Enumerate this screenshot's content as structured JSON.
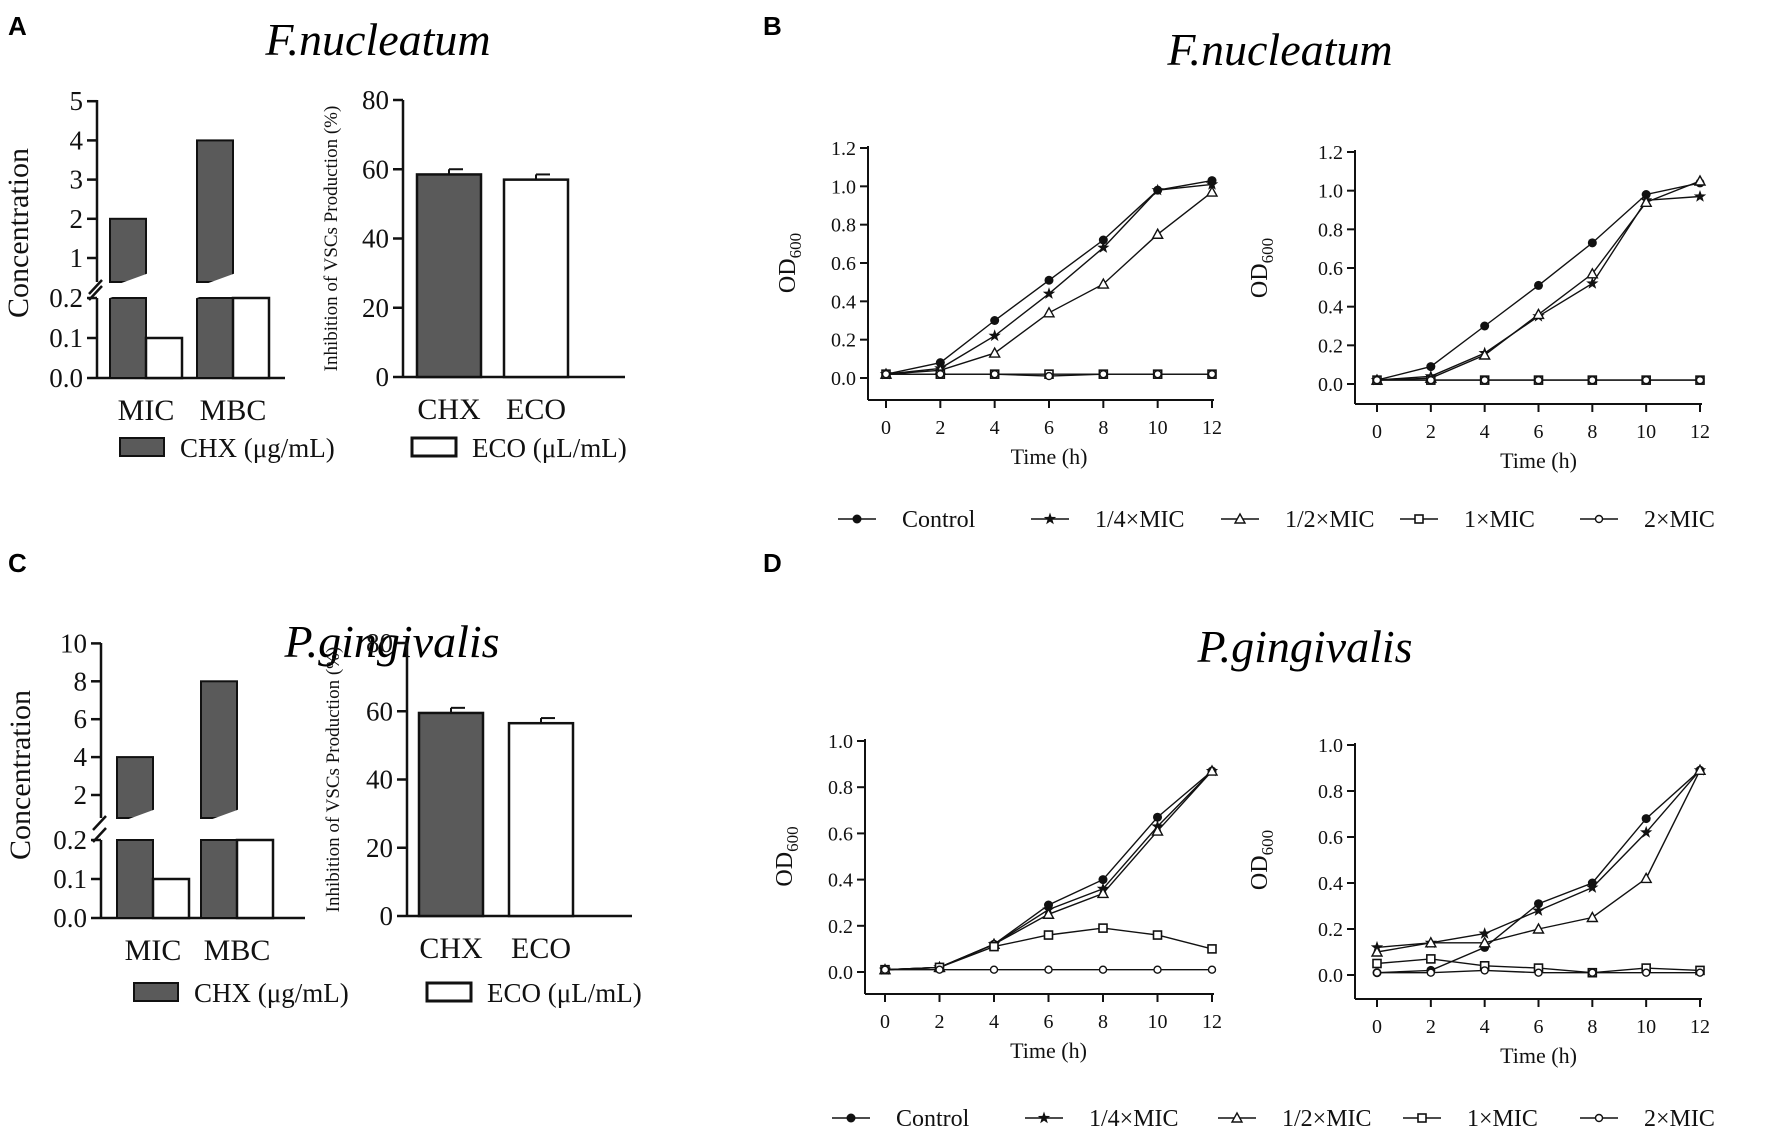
{
  "panels": {
    "A": {
      "letter": "A",
      "organism": "F.nucleatum",
      "conc": {
        "ylabel": "Concentration",
        "upper_ticks": [
          "1",
          "2",
          "3",
          "4",
          "5"
        ],
        "lower_ticks": [
          "0.0",
          "0.1",
          "0.2"
        ],
        "categories": [
          "MIC",
          "MBC"
        ],
        "chx_values": [
          2,
          4
        ],
        "eco_values": [
          0.1,
          0.2
        ]
      },
      "inhib": {
        "ylabel": "Inhibition of VSCs Production (%)",
        "ticks": [
          "0",
          "20",
          "40",
          "60",
          "80"
        ],
        "categories": [
          "CHX",
          "ECO"
        ],
        "values": [
          58.5,
          57
        ]
      },
      "legend": {
        "chx": "CHX (μg/mL)",
        "eco": "ECO (μL/mL)"
      }
    },
    "C": {
      "letter": "C",
      "organism": "P.gingivalis",
      "conc": {
        "ylabel": "Concentration",
        "upper_ticks": [
          "2",
          "4",
          "6",
          "8",
          "10"
        ],
        "lower_ticks": [
          "0.0",
          "0.1",
          "0.2"
        ],
        "categories": [
          "MIC",
          "MBC"
        ],
        "chx_values": [
          4,
          8
        ],
        "eco_values": [
          0.1,
          0.2
        ]
      },
      "inhib": {
        "ylabel": "Inhibition of VSCs Production (%)",
        "ticks": [
          "0",
          "20",
          "40",
          "60",
          "80"
        ],
        "categories": [
          "CHX",
          "ECO"
        ],
        "values": [
          59.5,
          56.5
        ]
      },
      "legend": {
        "chx": "CHX (μg/mL)",
        "eco": "ECO (μL/mL)"
      }
    },
    "B": {
      "letter": "B",
      "organism": "F.nucleatum",
      "xlabel": "Time (h)",
      "ylabel": "OD",
      "ylabel_sub": "600",
      "x_ticks": [
        "0",
        "2",
        "4",
        "6",
        "8",
        "10",
        "12"
      ],
      "y_ticks": [
        "0.0",
        "0.2",
        "0.4",
        "0.6",
        "0.8",
        "1.0",
        "1.2"
      ]
    },
    "D": {
      "letter": "D",
      "organism": "P.gingivalis",
      "xlabel": "Time (h)",
      "ylabel": "OD",
      "ylabel_sub": "600",
      "x_ticks": [
        "0",
        "2",
        "4",
        "6",
        "8",
        "10",
        "12"
      ],
      "y_ticks": [
        "0.0",
        "0.2",
        "0.4",
        "0.6",
        "0.8",
        "1.0"
      ]
    }
  },
  "growth_legend": [
    "Control",
    "1/4×MIC",
    "1/2×MIC",
    "1×MIC",
    "2×MIC"
  ],
  "chart_data": [
    {
      "panel": "A-left",
      "type": "bar",
      "title": "F.nucleatum",
      "ylabel": "Concentration",
      "axis_break": [
        0.2,
        1
      ],
      "categories": [
        "MIC",
        "MBC"
      ],
      "series": [
        {
          "name": "CHX (μg/mL)",
          "values": [
            2,
            4
          ]
        },
        {
          "name": "ECO (μL/mL)",
          "values": [
            0.1,
            0.2
          ]
        }
      ],
      "ylim": [
        0,
        5
      ]
    },
    {
      "panel": "A-right",
      "type": "bar",
      "title": "F.nucleatum",
      "ylabel": "Inhibition of VSCs Production (%)",
      "categories": [
        "CHX",
        "ECO"
      ],
      "values": [
        58.5,
        57
      ],
      "errors": [
        1,
        1
      ],
      "ylim": [
        0,
        80
      ]
    },
    {
      "panel": "C-left",
      "type": "bar",
      "title": "P.gingivalis",
      "ylabel": "Concentration",
      "axis_break": [
        0.2,
        1
      ],
      "categories": [
        "MIC",
        "MBC"
      ],
      "series": [
        {
          "name": "CHX (μg/mL)",
          "values": [
            4,
            8
          ]
        },
        {
          "name": "ECO (μL/mL)",
          "values": [
            0.1,
            0.2
          ]
        }
      ],
      "ylim": [
        0,
        10
      ]
    },
    {
      "panel": "C-right",
      "type": "bar",
      "title": "P.gingivalis",
      "ylabel": "Inhibition of VSCs Production (%)",
      "categories": [
        "CHX",
        "ECO"
      ],
      "values": [
        59.5,
        56.5
      ],
      "errors": [
        1.5,
        1.5
      ],
      "ylim": [
        0,
        80
      ]
    },
    {
      "panel": "B-left",
      "type": "line",
      "title": "F.nucleatum",
      "xlabel": "Time (h)",
      "ylabel": "OD600",
      "x": [
        0,
        2,
        4,
        6,
        8,
        10,
        12
      ],
      "xlim": [
        0,
        12
      ],
      "ylim": [
        0,
        1.2
      ],
      "series": [
        {
          "name": "Control",
          "values": [
            0.02,
            0.08,
            0.3,
            0.51,
            0.72,
            0.98,
            1.03
          ]
        },
        {
          "name": "1/4×MIC",
          "values": [
            0.02,
            0.05,
            0.22,
            0.44,
            0.68,
            0.98,
            1.01
          ]
        },
        {
          "name": "1/2×MIC",
          "values": [
            0.02,
            0.04,
            0.13,
            0.34,
            0.49,
            0.75,
            0.97
          ]
        },
        {
          "name": "1×MIC",
          "values": [
            0.02,
            0.02,
            0.02,
            0.02,
            0.02,
            0.02,
            0.02
          ]
        },
        {
          "name": "2×MIC",
          "values": [
            0.02,
            0.02,
            0.02,
            0.01,
            0.02,
            0.02,
            0.02
          ]
        }
      ]
    },
    {
      "panel": "B-right",
      "type": "line",
      "title": "F.nucleatum",
      "xlabel": "Time (h)",
      "ylabel": "OD600",
      "x": [
        0,
        2,
        4,
        6,
        8,
        10,
        12
      ],
      "xlim": [
        0,
        12
      ],
      "ylim": [
        0,
        1.2
      ],
      "series": [
        {
          "name": "Control",
          "values": [
            0.02,
            0.09,
            0.3,
            0.51,
            0.73,
            0.98,
            1.04
          ]
        },
        {
          "name": "1/4×MIC",
          "values": [
            0.02,
            0.04,
            0.16,
            0.35,
            0.52,
            0.95,
            0.97
          ]
        },
        {
          "name": "1/2×MIC",
          "values": [
            0.02,
            0.03,
            0.15,
            0.36,
            0.57,
            0.94,
            1.05
          ]
        },
        {
          "name": "1×MIC",
          "values": [
            0.02,
            0.02,
            0.02,
            0.02,
            0.02,
            0.02,
            0.02
          ]
        },
        {
          "name": "2×MIC",
          "values": [
            0.02,
            0.02,
            0.02,
            0.02,
            0.02,
            0.02,
            0.02
          ]
        }
      ]
    },
    {
      "panel": "D-left",
      "type": "line",
      "title": "P.gingivalis",
      "xlabel": "Time (h)",
      "ylabel": "OD600",
      "x": [
        0,
        2,
        4,
        6,
        8,
        10,
        12
      ],
      "xlim": [
        0,
        12
      ],
      "ylim": [
        0,
        1.0
      ],
      "series": [
        {
          "name": "Control",
          "values": [
            0.01,
            0.02,
            0.12,
            0.29,
            0.4,
            0.67,
            0.87
          ]
        },
        {
          "name": "1/4×MIC",
          "values": [
            0.01,
            0.02,
            0.12,
            0.27,
            0.36,
            0.63,
            0.87
          ]
        },
        {
          "name": "1/2×MIC",
          "values": [
            0.01,
            0.02,
            0.12,
            0.25,
            0.34,
            0.61,
            0.87
          ]
        },
        {
          "name": "1×MIC",
          "values": [
            0.01,
            0.02,
            0.11,
            0.16,
            0.19,
            0.16,
            0.1
          ]
        },
        {
          "name": "2×MIC",
          "values": [
            0.01,
            0.01,
            0.01,
            0.01,
            0.01,
            0.01,
            0.01
          ]
        }
      ]
    },
    {
      "panel": "D-right",
      "type": "line",
      "title": "P.gingivalis",
      "xlabel": "Time (h)",
      "ylabel": "OD600",
      "x": [
        0,
        2,
        4,
        6,
        8,
        10,
        12
      ],
      "xlim": [
        0,
        12
      ],
      "ylim": [
        0,
        1.0
      ],
      "series": [
        {
          "name": "Control",
          "values": [
            0.01,
            0.02,
            0.12,
            0.31,
            0.4,
            0.68,
            0.89
          ]
        },
        {
          "name": "1/4×MIC",
          "values": [
            0.12,
            0.14,
            0.18,
            0.28,
            0.38,
            0.62,
            0.89
          ]
        },
        {
          "name": "1/2×MIC",
          "values": [
            0.1,
            0.14,
            0.14,
            0.2,
            0.25,
            0.42,
            0.89
          ]
        },
        {
          "name": "1×MIC",
          "values": [
            0.05,
            0.07,
            0.04,
            0.03,
            0.01,
            0.03,
            0.02
          ]
        },
        {
          "name": "2×MIC",
          "values": [
            0.01,
            0.01,
            0.02,
            0.01,
            0.01,
            0.01,
            0.01
          ]
        }
      ]
    }
  ]
}
